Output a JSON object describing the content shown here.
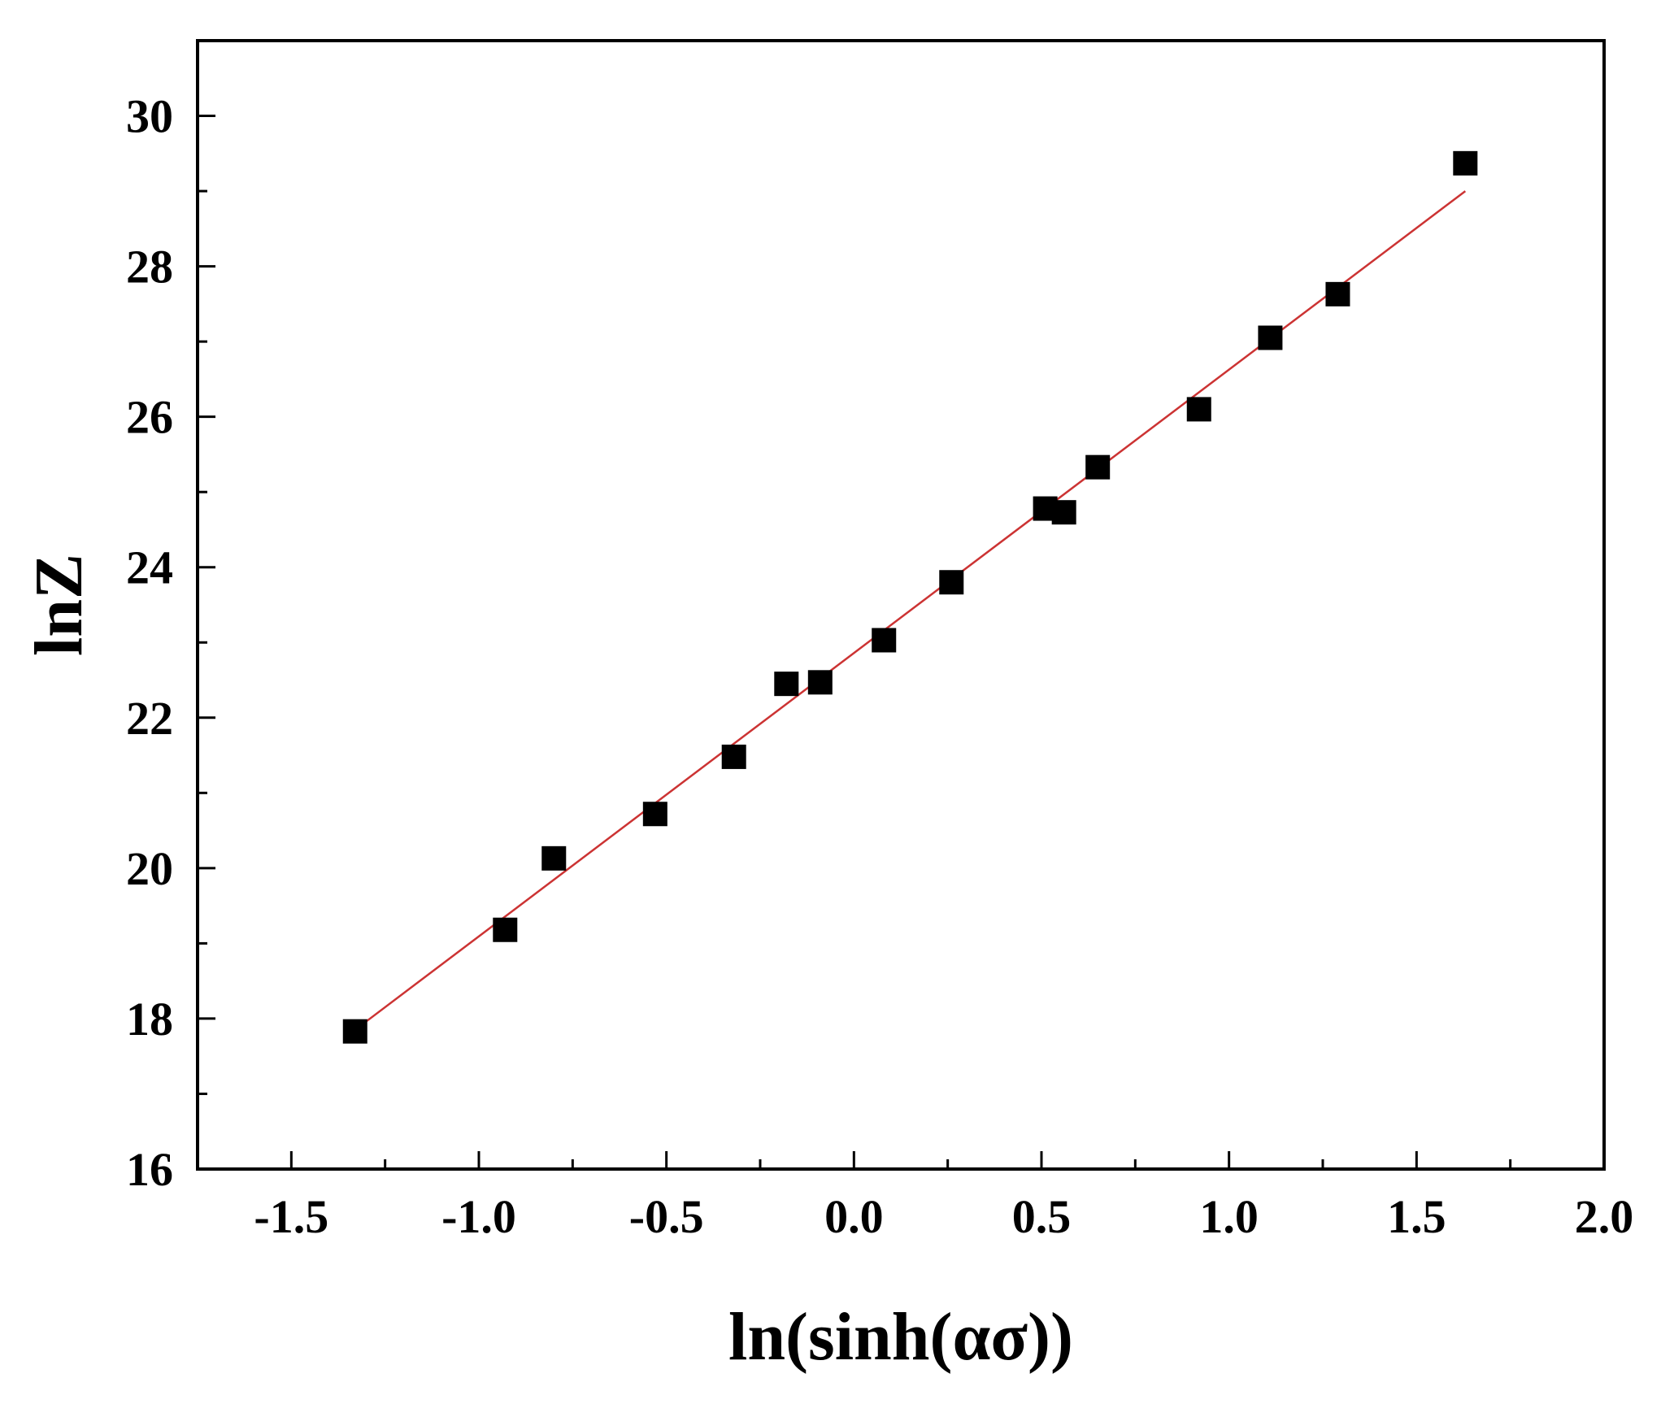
{
  "chart_data": {
    "type": "scatter",
    "xlabel": "ln(sinh(ασ))",
    "ylabel": "lnZ",
    "xlim": [
      -1.75,
      2.0
    ],
    "ylim": [
      16,
      31
    ],
    "x_ticks": [
      -1.5,
      -1.0,
      -0.5,
      0.0,
      0.5,
      1.0,
      1.5,
      2.0
    ],
    "x_tick_labels": [
      "-1.5",
      "-1.0",
      "-0.5",
      "0.0",
      "0.5",
      "1.0",
      "1.5",
      "2.0"
    ],
    "y_ticks": [
      16,
      18,
      20,
      22,
      24,
      26,
      28,
      30
    ],
    "y_tick_labels": [
      "16",
      "18",
      "20",
      "22",
      "24",
      "26",
      "28",
      "30"
    ],
    "grid": false,
    "legend": "none",
    "series": [
      {
        "marker": "square",
        "color": "#000000",
        "points": [
          {
            "x": -1.33,
            "y": 17.83
          },
          {
            "x": -0.93,
            "y": 19.18
          },
          {
            "x": -0.8,
            "y": 20.13
          },
          {
            "x": -0.53,
            "y": 20.72
          },
          {
            "x": -0.32,
            "y": 21.48
          },
          {
            "x": -0.18,
            "y": 22.45
          },
          {
            "x": -0.09,
            "y": 22.47
          },
          {
            "x": 0.08,
            "y": 23.03
          },
          {
            "x": 0.26,
            "y": 23.8
          },
          {
            "x": 0.51,
            "y": 24.78
          },
          {
            "x": 0.56,
            "y": 24.73
          },
          {
            "x": 0.65,
            "y": 25.33
          },
          {
            "x": 0.92,
            "y": 26.1
          },
          {
            "x": 1.11,
            "y": 27.05
          },
          {
            "x": 1.29,
            "y": 27.63
          },
          {
            "x": 1.63,
            "y": 29.37
          }
        ]
      },
      {
        "type": "line",
        "color": "#cc3333",
        "points": [
          {
            "x": -1.33,
            "y": 17.85
          },
          {
            "x": 1.63,
            "y": 29.0
          }
        ]
      }
    ]
  }
}
